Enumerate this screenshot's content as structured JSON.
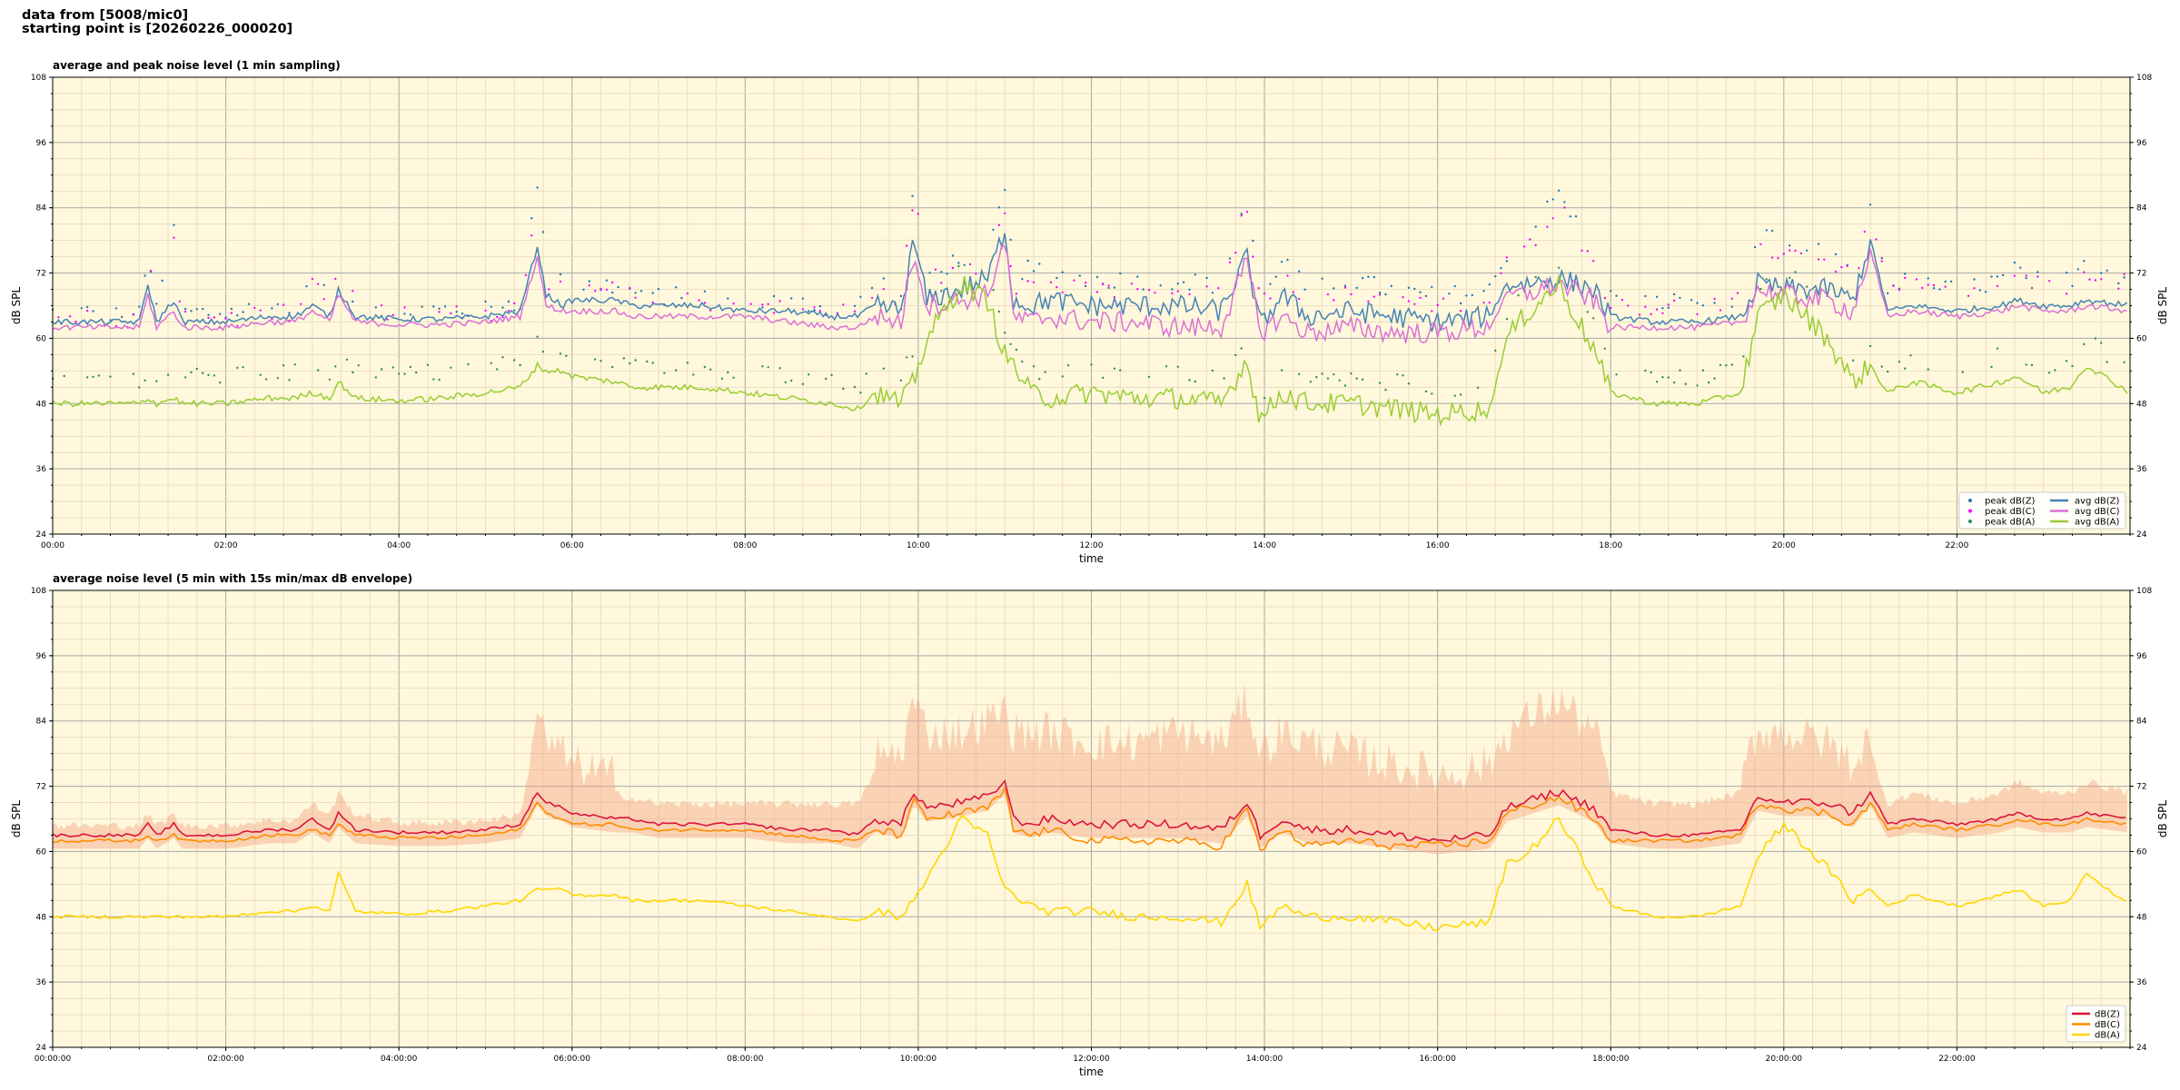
{
  "header": {
    "line1": "data from [5008/mic0]",
    "line2": "starting point is [20260226_000020]"
  },
  "colors": {
    "background": "#fff8dc",
    "peak_z": "#1f77b4",
    "peak_c": "#ff00ff",
    "peak_a": "#2e8b57",
    "avg_z": "#4682b4",
    "avg_c": "#da70d6",
    "avg_a": "#9acd32",
    "z": "#dc143c",
    "c": "#ff8c00",
    "a": "#ffd700",
    "envelope": "#f4a582"
  },
  "chart_data": [
    {
      "type": "line",
      "title": "average and peak noise level (1 min sampling)",
      "xlabel": "time",
      "ylabel": "dB SPL",
      "ylim": [
        24,
        108
      ],
      "xlim_hours": [
        0,
        24
      ],
      "yticks": [
        "24",
        "36",
        "48",
        "60",
        "72",
        "84",
        "96",
        "108"
      ],
      "xticks": [
        "00:00",
        "02:00",
        "04:00",
        "06:00",
        "08:00",
        "10:00",
        "12:00",
        "14:00",
        "16:00",
        "18:00",
        "20:00",
        "22:00"
      ],
      "grid": true,
      "legend_position": "lower-right",
      "legend": [
        "peak dB(Z)",
        "peak dB(C)",
        "peak dB(A)",
        "avg dB(Z)",
        "avg dB(C)",
        "avg dB(A)"
      ],
      "x_hours": [
        0,
        0.5,
        1,
        1.1,
        1.2,
        1.4,
        1.5,
        2,
        2.5,
        2.8,
        3,
        3.2,
        3.3,
        3.5,
        4,
        4.5,
        5,
        5.4,
        5.6,
        5.7,
        5.9,
        6,
        6.5,
        6.7,
        7,
        7.5,
        8,
        8.5,
        9,
        9.3,
        9.5,
        9.8,
        9.95,
        10.1,
        10.5,
        10.8,
        11,
        11.1,
        11.3,
        11.5,
        12,
        12.5,
        13,
        13.5,
        13.8,
        13.95,
        14.2,
        14.5,
        15,
        15.5,
        16,
        16.6,
        16.8,
        17,
        17.4,
        17.8,
        18,
        18.5,
        19,
        19.5,
        19.7,
        20,
        20.5,
        20.8,
        21,
        21.2,
        21.5,
        22,
        22.5,
        22.7,
        23,
        23.3,
        23.5,
        24
      ],
      "series": [
        {
          "name": "avg dB(Z)",
          "values": [
            63,
            63,
            63,
            70,
            63,
            67,
            63,
            63,
            64,
            64,
            66,
            64,
            69,
            64,
            63.5,
            63.5,
            64,
            65,
            77,
            68,
            66,
            67,
            67,
            66,
            66,
            66,
            65,
            65,
            64,
            64,
            66,
            65,
            78,
            67,
            69,
            71,
            80,
            67,
            66,
            67,
            66,
            66,
            66,
            65,
            75,
            62,
            68,
            64,
            65,
            64,
            63,
            64,
            70,
            70,
            71,
            69,
            64,
            63,
            63,
            64,
            70,
            69,
            69,
            67,
            78,
            65,
            66,
            65,
            66,
            67,
            66,
            66,
            67,
            66
          ]
        },
        {
          "name": "avg dB(C)",
          "values": [
            62,
            62,
            62,
            68,
            62,
            65,
            62,
            62,
            63,
            63,
            65,
            63,
            68,
            63,
            62.5,
            62.5,
            63,
            64,
            75,
            66,
            65,
            65,
            65,
            64,
            64,
            64,
            64,
            63,
            62,
            62,
            64,
            63,
            76,
            66,
            67,
            68,
            78,
            64,
            63,
            64,
            63,
            63,
            62,
            62,
            74,
            61,
            64,
            61,
            62,
            61,
            61,
            62,
            68,
            68,
            70,
            67,
            62,
            62,
            62,
            63,
            69,
            68,
            67,
            65,
            76,
            64,
            65,
            64,
            65,
            66,
            65,
            65,
            66,
            65
          ]
        },
        {
          "name": "avg dB(A)",
          "values": [
            48,
            48,
            48,
            49,
            48,
            49,
            48,
            48,
            49,
            49,
            50,
            49,
            52,
            49,
            48.5,
            49,
            50,
            51,
            55,
            54,
            54,
            53,
            52,
            51,
            51,
            51,
            50,
            49,
            48,
            47,
            50,
            48,
            52,
            60,
            70,
            67,
            57,
            55,
            50,
            49,
            50,
            49,
            49,
            48,
            56,
            45,
            50,
            48,
            48,
            47,
            46,
            47,
            60,
            64,
            70,
            58,
            50,
            48,
            48,
            50,
            64,
            68,
            60,
            52,
            55,
            50,
            52,
            50,
            52,
            53,
            50,
            51,
            55,
            50
          ]
        },
        {
          "name": "peak dB(Z)",
          "values": [
            64,
            64,
            64,
            76,
            64,
            79,
            64,
            64,
            65,
            65,
            70,
            66,
            75,
            66,
            64.5,
            64.5,
            65,
            66,
            88,
            72,
            72,
            69,
            69,
            68,
            67,
            67,
            66,
            66,
            65,
            65,
            70,
            68,
            88,
            71,
            74,
            75,
            86,
            71,
            72,
            71,
            70,
            70,
            70,
            69,
            86,
            66,
            74,
            68,
            70,
            68,
            67,
            68,
            75,
            77,
            86,
            75,
            67,
            66,
            66,
            67,
            78,
            77,
            76,
            72,
            83,
            69,
            70,
            68,
            70,
            72,
            70,
            70,
            74,
            70
          ]
        },
        {
          "name": "peak dB(C)",
          "values": [
            63,
            63,
            63,
            74,
            63,
            77,
            63,
            63,
            64,
            64,
            69,
            65,
            73,
            65,
            63.5,
            63.5,
            64,
            65,
            86,
            70,
            70,
            68,
            68,
            67,
            66,
            66,
            65,
            65,
            64,
            64,
            68,
            66,
            86,
            70,
            72,
            73,
            84,
            69,
            69,
            69,
            68,
            68,
            68,
            67,
            84,
            65,
            72,
            66,
            68,
            66,
            65,
            66,
            73,
            75,
            84,
            73,
            66,
            65,
            65,
            66,
            76,
            75,
            74,
            70,
            81,
            68,
            69,
            67,
            69,
            70,
            69,
            69,
            72,
            69
          ]
        },
        {
          "name": "peak dB(A)",
          "values": [
            52,
            52,
            52,
            53,
            52,
            53,
            52,
            52,
            53,
            53,
            54,
            53,
            56,
            53,
            52.5,
            53,
            54,
            55,
            59,
            57,
            57,
            56,
            55,
            54,
            54,
            54,
            53,
            52,
            51,
            50,
            54,
            52,
            57,
            63,
            73,
            70,
            61,
            59,
            54,
            53,
            54,
            53,
            53,
            52,
            60,
            49,
            54,
            52,
            52,
            51,
            50,
            51,
            64,
            68,
            74,
            62,
            54,
            52,
            52,
            54,
            68,
            72,
            64,
            56,
            59,
            54,
            56,
            54,
            56,
            57,
            54,
            55,
            59,
            54
          ]
        }
      ]
    },
    {
      "type": "line",
      "title": "average noise level (5 min with 15s min/max dB envelope)",
      "xlabel": "time",
      "ylabel": "dB SPL",
      "ylim": [
        24,
        108
      ],
      "xlim_hours": [
        0,
        24
      ],
      "yticks": [
        "24",
        "36",
        "48",
        "60",
        "72",
        "84",
        "96",
        "108"
      ],
      "xticks": [
        "00:00:00",
        "02:00:00",
        "04:00:00",
        "06:00:00",
        "08:00:00",
        "10:00:00",
        "12:00:00",
        "14:00:00",
        "16:00:00",
        "18:00:00",
        "20:00:00",
        "22:00:00"
      ],
      "grid": true,
      "legend_position": "lower-right",
      "legend": [
        "dB(Z)",
        "dB(C)",
        "dB(A)"
      ],
      "x_hours": [
        0,
        0.5,
        1,
        1.1,
        1.2,
        1.4,
        1.5,
        2,
        2.5,
        2.8,
        3,
        3.2,
        3.3,
        3.5,
        4,
        4.5,
        5,
        5.4,
        5.6,
        5.7,
        5.9,
        6,
        6.5,
        6.7,
        7,
        7.5,
        8,
        8.5,
        9,
        9.3,
        9.5,
        9.8,
        9.95,
        10.1,
        10.5,
        10.8,
        11,
        11.1,
        11.3,
        11.5,
        12,
        12.5,
        13,
        13.5,
        13.8,
        13.95,
        14.2,
        14.5,
        15,
        15.5,
        16,
        16.6,
        16.8,
        17,
        17.4,
        17.8,
        18,
        18.5,
        19,
        19.5,
        19.7,
        20,
        20.5,
        20.8,
        21,
        21.2,
        21.5,
        22,
        22.5,
        22.7,
        23,
        23.3,
        23.5,
        24
      ],
      "series": [
        {
          "name": "dB(Z)",
          "values": [
            63,
            63,
            63,
            65,
            63,
            65,
            63,
            63,
            64,
            64,
            66,
            64,
            67,
            64,
            63.5,
            63.5,
            64,
            65,
            71,
            69,
            68,
            67,
            66,
            66,
            65,
            65,
            65,
            64,
            64,
            63,
            66,
            65,
            71,
            68,
            69,
            70,
            73,
            66,
            65,
            66,
            65,
            65,
            65,
            64,
            69,
            63,
            66,
            64,
            64,
            63,
            62,
            63,
            68,
            69,
            71,
            68,
            64,
            63,
            63,
            64,
            70,
            69,
            69,
            67,
            71,
            65,
            66,
            65,
            66,
            67,
            66,
            66,
            67,
            66
          ]
        },
        {
          "name": "dB(C)",
          "values": [
            62,
            62,
            62,
            63,
            62,
            63,
            62,
            62,
            63,
            63,
            64,
            63,
            65,
            63,
            62.5,
            62.5,
            63,
            64,
            69,
            67,
            66,
            65,
            65,
            64,
            64,
            64,
            64,
            63,
            62,
            62,
            64,
            63,
            69,
            66,
            67,
            68,
            71,
            64,
            63,
            64,
            62,
            62,
            62,
            61,
            68,
            60,
            64,
            61,
            62,
            61,
            61,
            62,
            67,
            68,
            70,
            66,
            62,
            62,
            62,
            63,
            69,
            68,
            67,
            65,
            69,
            64,
            65,
            64,
            65,
            66,
            65,
            65,
            66,
            65
          ]
        },
        {
          "name": "dB(A)",
          "values": [
            48,
            48,
            48,
            48,
            48,
            48,
            48,
            48,
            49,
            49,
            50,
            49,
            56,
            49,
            48.5,
            49,
            50,
            51,
            53,
            53,
            53,
            52,
            52,
            51,
            51,
            51,
            50,
            49,
            48,
            47,
            49,
            48,
            51,
            55,
            66,
            63,
            53,
            52,
            50,
            49,
            49,
            48,
            48,
            47,
            54,
            46,
            50,
            48,
            48,
            47,
            46,
            47,
            58,
            59,
            66,
            55,
            50,
            48,
            48,
            50,
            59,
            65,
            57,
            51,
            53,
            50,
            52,
            50,
            52,
            53,
            50,
            51,
            56,
            50
          ]
        },
        {
          "name": "envelope",
          "values": [
            64,
            64,
            64,
            66,
            64,
            66,
            64,
            64,
            65,
            65,
            68,
            66,
            70,
            66,
            64.5,
            64.5,
            65,
            66,
            82,
            76,
            74,
            72,
            70,
            69,
            68,
            68,
            68,
            68,
            68,
            68,
            74,
            74,
            84,
            78,
            78,
            80,
            82,
            78,
            78,
            78,
            76,
            76,
            78,
            76,
            84,
            74,
            78,
            76,
            74,
            72,
            70,
            72,
            78,
            80,
            84,
            78,
            70,
            68,
            68,
            70,
            78,
            78,
            76,
            72,
            78,
            68,
            70,
            68,
            70,
            72,
            70,
            70,
            72,
            70
          ]
        }
      ]
    }
  ]
}
